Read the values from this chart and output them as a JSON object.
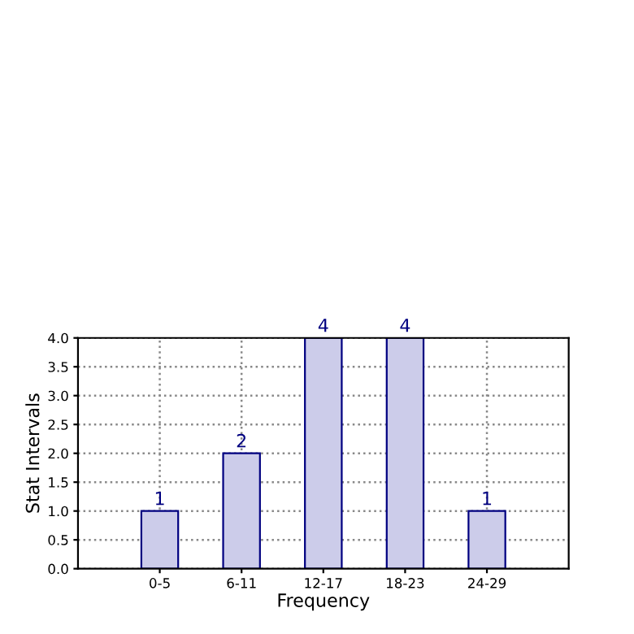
{
  "chart_data": {
    "type": "bar",
    "categories": [
      "0-5",
      "6-11",
      "12-17",
      "18-23",
      "24-29"
    ],
    "values": [
      1,
      2,
      4,
      4,
      1
    ],
    "color": "#ccccea",
    "xlabel": "Frequency",
    "ylabel": "Stat Intervals",
    "ylim": [
      0,
      4
    ],
    "yticks": [
      {
        "value": 0,
        "label": "0.0"
      },
      {
        "value": 0.5,
        "label": "0.5"
      },
      {
        "value": 1,
        "label": "1.0"
      },
      {
        "value": 1.5,
        "label": "1.5"
      },
      {
        "value": 2,
        "label": "2.0"
      },
      {
        "value": 2.5,
        "label": "2.5"
      },
      {
        "value": 3,
        "label": "3.0"
      },
      {
        "value": 3.5,
        "label": "3.5"
      },
      {
        "value": 4,
        "label": "4.0"
      }
    ],
    "grid": true,
    "data_labels": true
  }
}
